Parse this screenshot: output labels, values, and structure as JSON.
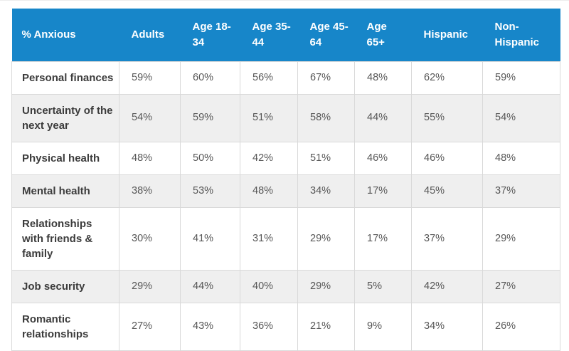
{
  "colors": {
    "header_bg": "#1786c9",
    "header_text": "#ffffff",
    "stripe_bg": "#efefef",
    "border": "#d9d9d9",
    "label_text": "#3c3c3c",
    "value_text": "#575757"
  },
  "table": {
    "header": [
      "% Anxious",
      "Adults",
      "Age 18-34",
      "Age 35-44",
      "Age 45-64",
      "Age 65+",
      "Hispanic",
      "Non-Hispanic"
    ],
    "rows": [
      {
        "label": "Personal finances",
        "values": [
          "59%",
          "60%",
          "56%",
          "67%",
          "48%",
          "62%",
          "59%"
        ]
      },
      {
        "label": "Uncertainty of the next year",
        "values": [
          "54%",
          "59%",
          "51%",
          "58%",
          "44%",
          "55%",
          "54%"
        ]
      },
      {
        "label": "Physical health",
        "values": [
          "48%",
          "50%",
          "42%",
          "51%",
          "46%",
          "46%",
          "48%"
        ]
      },
      {
        "label": "Mental health",
        "values": [
          "38%",
          "53%",
          "48%",
          "34%",
          "17%",
          "45%",
          "37%"
        ]
      },
      {
        "label": "Relationships with friends & family",
        "values": [
          "30%",
          "41%",
          "31%",
          "29%",
          "17%",
          "37%",
          "29%"
        ]
      },
      {
        "label": "Job security",
        "values": [
          "29%",
          "44%",
          "40%",
          "29%",
          "5%",
          "42%",
          "27%"
        ]
      },
      {
        "label": "Romantic relationships",
        "values": [
          "27%",
          "43%",
          "36%",
          "21%",
          "9%",
          "34%",
          "26%"
        ]
      }
    ]
  },
  "chart_data": {
    "type": "table",
    "title": "% Anxious",
    "unit": "%",
    "categories": [
      "Adults",
      "Age 18-34",
      "Age 35-44",
      "Age 45-64",
      "Age 65+",
      "Hispanic",
      "Non-Hispanic"
    ],
    "series": [
      {
        "name": "Personal finances",
        "values": [
          59,
          60,
          56,
          67,
          48,
          62,
          59
        ]
      },
      {
        "name": "Uncertainty of the next year",
        "values": [
          54,
          59,
          51,
          58,
          44,
          55,
          54
        ]
      },
      {
        "name": "Physical health",
        "values": [
          48,
          50,
          42,
          51,
          46,
          46,
          48
        ]
      },
      {
        "name": "Mental health",
        "values": [
          38,
          53,
          48,
          34,
          17,
          45,
          37
        ]
      },
      {
        "name": "Relationships with friends & family",
        "values": [
          30,
          41,
          31,
          29,
          17,
          37,
          29
        ]
      },
      {
        "name": "Job security",
        "values": [
          29,
          44,
          40,
          29,
          5,
          42,
          27
        ]
      },
      {
        "name": "Romantic relationships",
        "values": [
          27,
          43,
          36,
          21,
          9,
          34,
          26
        ]
      }
    ],
    "layout": {
      "header_row": true,
      "zebra_striping": true,
      "grid": true
    }
  }
}
